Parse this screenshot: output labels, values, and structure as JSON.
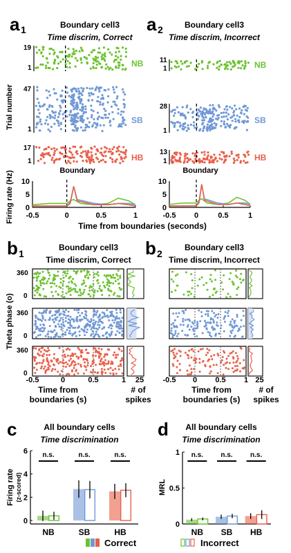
{
  "panel_a": {
    "label1": "a",
    "sub1": "1",
    "label2": "a",
    "sub2": "2",
    "cell": "Boundary cell3",
    "cond1": "Time discrim, Correct",
    "cond2": "Time discrim, Incorrect",
    "ylabel": "Trial number",
    "boundary_label": "Boundary",
    "fr_ylabel": "Firing rate (Hz)",
    "xlabel": "Time from boundaries (seconds)",
    "xticks": [
      "-0.5",
      "0",
      "0.5",
      "1"
    ],
    "fr_yticks": [
      "0",
      "5",
      "10"
    ],
    "rows": [
      {
        "name": "NB",
        "color": "#6cc230",
        "top1": "19",
        "top2": "11",
        "bot": "1"
      },
      {
        "name": "SB",
        "color": "#6f98d6",
        "top1": "47",
        "top2": "28",
        "bot": "1"
      },
      {
        "name": "HB",
        "color": "#e8604a",
        "top1": "17",
        "top2": "13",
        "bot": "1"
      }
    ]
  },
  "panel_b": {
    "label1": "b",
    "sub1": "1",
    "label2": "b",
    "sub2": "2",
    "cell": "Boundary cell3",
    "cond1": "Time discrim, Correct",
    "cond2": "Time discrim, Incorrect",
    "ylabel": "Theta phase (o)",
    "ytick_top": "360",
    "ytick_bot": "0",
    "xticks": [
      "-0.5",
      "0",
      "0.5",
      "1"
    ],
    "hist_xtick": "25",
    "xlabel_line1": "Time from",
    "xlabel_line2": "boundaries (s)",
    "hist_label_line1": "# of",
    "hist_label_line2": "spikes"
  },
  "panel_c": {
    "label": "c",
    "title": "All boundary cells",
    "subtitle": "Time discrimination",
    "ylabel_line1": "Firing rate",
    "ylabel_line2": "(z-scored)",
    "yticks": [
      "0",
      "2",
      "4",
      "6"
    ],
    "ns": "n.s."
  },
  "panel_d": {
    "label": "d",
    "title": "All boundary cells",
    "subtitle": "Time discrimination",
    "ylabel": "MRL",
    "yticks": [
      "0",
      "0.5",
      "1"
    ],
    "ns": "n.s."
  },
  "legend": {
    "correct": "Correct",
    "incorrect": "Incorrect"
  },
  "colors": {
    "NB": "#6cc230",
    "SB": "#6f98d6",
    "HB": "#e8604a"
  },
  "chart_data": [
    {
      "type": "bar",
      "title": "All boundary cells",
      "subtitle": "Time discrimination",
      "categories": [
        "NB",
        "SB",
        "HB"
      ],
      "ylabel": "Firing rate (z-scored)",
      "ylim": [
        -0.3,
        6
      ],
      "series": [
        {
          "name": "Correct",
          "values": [
            0.4,
            2.7,
            2.5
          ],
          "errors": [
            0.45,
            0.75,
            0.65
          ]
        },
        {
          "name": "Incorrect",
          "values": [
            0.4,
            2.65,
            2.6
          ],
          "errors": [
            0.35,
            0.75,
            0.6
          ]
        }
      ],
      "annotations": [
        "n.s.",
        "n.s.",
        "n.s."
      ]
    },
    {
      "type": "bar",
      "title": "All boundary cells",
      "subtitle": "Time discrimination",
      "categories": [
        "NB",
        "SB",
        "HB"
      ],
      "ylabel": "MRL",
      "ylim": [
        0,
        1
      ],
      "series": [
        {
          "name": "Correct",
          "values": [
            0.06,
            0.1,
            0.11
          ],
          "errors": [
            0.02,
            0.03,
            0.04
          ]
        },
        {
          "name": "Incorrect",
          "values": [
            0.07,
            0.11,
            0.13
          ],
          "errors": [
            0.02,
            0.03,
            0.06
          ]
        }
      ],
      "annotations": [
        "n.s.",
        "n.s.",
        "n.s."
      ]
    },
    {
      "type": "line",
      "title": "",
      "xlabel": "Time from boundaries (seconds)",
      "ylabel": "Firing rate (Hz)",
      "xlim": [
        -0.5,
        1
      ],
      "ylim": [
        0,
        10
      ],
      "series": [
        {
          "name": "NB",
          "x": [
            -0.5,
            -0.25,
            0,
            0.05,
            0.1,
            0.2,
            0.4,
            0.6,
            0.75,
            0.9,
            1
          ],
          "values": [
            1,
            1.5,
            1.5,
            2.5,
            3,
            1.5,
            1,
            1.5,
            3.5,
            2.5,
            1
          ]
        },
        {
          "name": "SB",
          "x": [
            -0.5,
            -0.25,
            0,
            0.05,
            0.1,
            0.15,
            0.4,
            0.6,
            0.75,
            0.9,
            1
          ],
          "values": [
            0.5,
            0.5,
            0.5,
            2,
            8,
            3,
            1.5,
            1,
            1.5,
            1.5,
            1
          ]
        },
        {
          "name": "HB",
          "x": [
            -0.5,
            -0.25,
            0,
            0.05,
            0.1,
            0.15,
            0.4,
            0.6,
            0.75,
            0.9,
            1
          ],
          "values": [
            0.5,
            0.5,
            0.5,
            1.5,
            8,
            2.5,
            1,
            1,
            1.5,
            1,
            0.5
          ]
        }
      ]
    }
  ]
}
